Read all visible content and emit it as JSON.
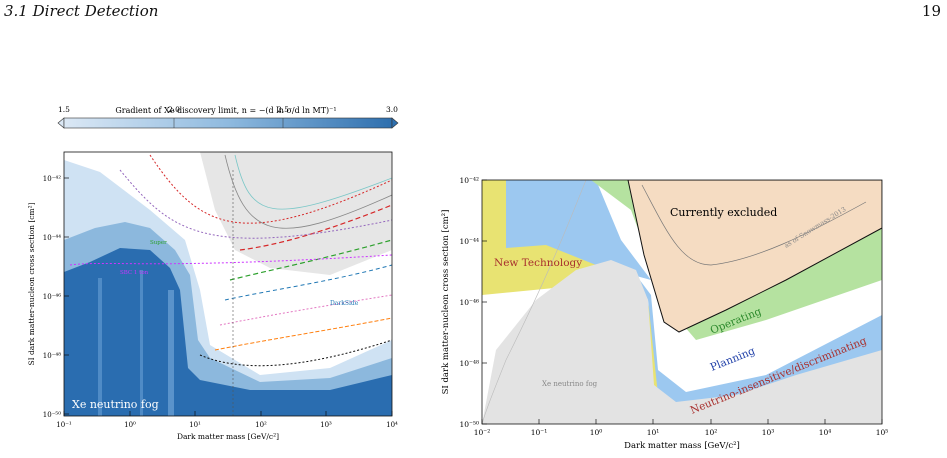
{
  "header": {
    "section": "3.1  Direct Detection",
    "page_number": "19"
  },
  "left_figure": {
    "colorbar_label": "Gradient of Xe discovery limit, n = −(d ln σ/d ln MT)⁻¹",
    "colorbar_ticks": [
      "1.5",
      "2.0",
      "2.5",
      "3.0"
    ],
    "ylabel": "SI dark matter-nucleon cross section [cm²]",
    "xlabel": "Dark matter mass [GeV/c²]",
    "xticks": [
      "10⁻¹",
      "10⁰",
      "10¹",
      "10²",
      "10³",
      "10⁴"
    ],
    "yticks": [
      "10⁻⁴²",
      "10⁻⁴⁴",
      "10⁻⁴⁶",
      "10⁻⁴⁸",
      "10⁻⁵⁰"
    ],
    "fog_label": "Xe neutrino fog",
    "curve_labels": [
      "SBC 1 ton",
      "Super",
      "DarkSide"
    ],
    "colors": {
      "fog_dark": "#2a6db0",
      "fog_mid": "#8cb8dd",
      "fog_light": "#cfe2f3",
      "excluded": "#e6e6e6"
    }
  },
  "right_figure": {
    "ylabel": "SI dark matter-nucleon cross section [cm²]",
    "xlabel": "Dark matter mass [GeV/c²]",
    "xticks": [
      "10⁻²",
      "10⁻¹",
      "10⁰",
      "10¹",
      "10²",
      "10³",
      "10⁴",
      "10⁵"
    ],
    "yticks": [
      "10⁻⁴²",
      "10⁻⁴⁴",
      "10⁻⁴⁶",
      "10⁻⁴⁸",
      "10⁻⁵⁰"
    ],
    "region_labels": {
      "excluded": "Currently excluded",
      "snowmass": "as of Snowmass-2013",
      "new_tech": "New Technology",
      "operating": "Operating",
      "planning": "Planning",
      "neutrino": "Neutrino-insensitive/discriminating",
      "fog": "Xe neutrino fog"
    },
    "colors": {
      "excluded": "#f5dcc2",
      "operating": "#b5e2a0",
      "planning": "#9cc8f0",
      "neutrino": "#e8e372",
      "new_tech": "#e8e372",
      "fog": "#e3e3e3"
    }
  },
  "chart_data": [
    {
      "type": "area",
      "xlabel": "Dark matter mass [GeV/c²]",
      "ylabel": "SI dark matter-nucleon cross section [cm²]",
      "xscale": "log",
      "yscale": "log",
      "xlim": [
        0.1,
        10000
      ],
      "ylim": [
        1e-50,
        1e-41
      ],
      "colorbar": {
        "label": "Gradient of Xe discovery limit, n = −(d ln σ/d ln MT)⁻¹",
        "range": [
          1.5,
          3.0
        ]
      },
      "annotations": [
        "Xe neutrino fog"
      ]
    },
    {
      "type": "area",
      "xlabel": "Dark matter mass [GeV/c²]",
      "ylabel": "SI dark matter-nucleon cross section [cm²]",
      "xscale": "log",
      "yscale": "log",
      "xlim": [
        0.01,
        100000
      ],
      "ylim": [
        1e-50,
        1e-42
      ],
      "series": [
        {
          "name": "Currently excluded"
        },
        {
          "name": "Operating"
        },
        {
          "name": "Planning"
        },
        {
          "name": "Neutrino-insensitive/discriminating"
        },
        {
          "name": "New Technology"
        },
        {
          "name": "Xe neutrino fog"
        }
      ],
      "annotations": [
        "as of Snowmass-2013"
      ]
    }
  ]
}
